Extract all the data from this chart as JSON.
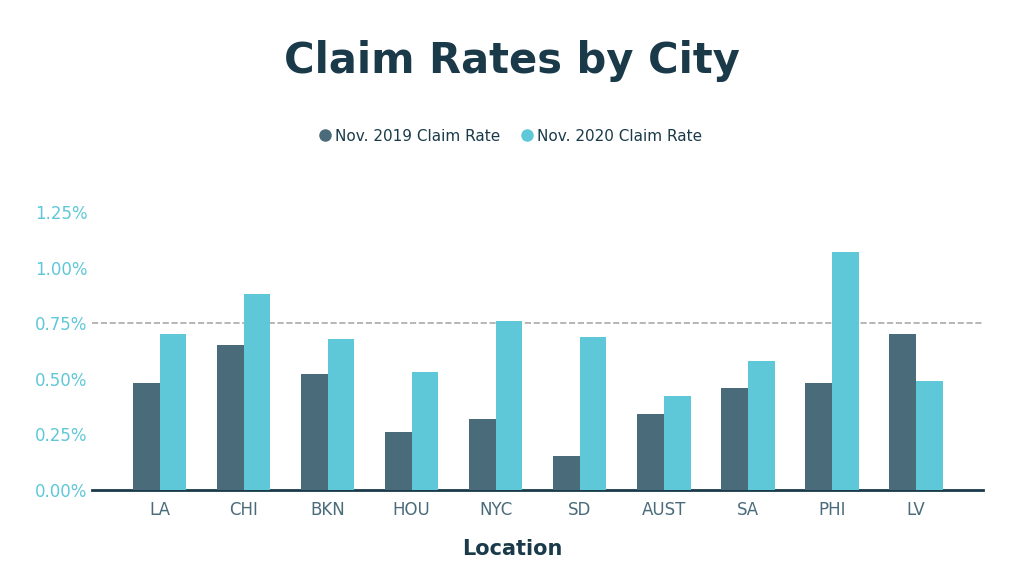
{
  "title": "Claim Rates by City",
  "xlabel": "Location",
  "categories": [
    "LA",
    "CHI",
    "BKN",
    "HOU",
    "NYC",
    "SD",
    "AUST",
    "SA",
    "PHI",
    "LV"
  ],
  "series_2019": [
    0.0048,
    0.0065,
    0.0052,
    0.0026,
    0.0032,
    0.0015,
    0.0034,
    0.0046,
    0.0048,
    0.007
  ],
  "series_2020": [
    0.007,
    0.0088,
    0.0068,
    0.0053,
    0.0076,
    0.0069,
    0.0042,
    0.0058,
    0.0107,
    0.0049
  ],
  "color_2019": "#4a6b7a",
  "color_2020": "#5ec8d8",
  "legend_2019": "Nov. 2019 Claim Rate",
  "legend_2020": "Nov. 2020 Claim Rate",
  "ylim": [
    0,
    0.0135
  ],
  "yticks": [
    0.0,
    0.0025,
    0.005,
    0.0075,
    0.01,
    0.0125
  ],
  "ytick_labels": [
    "0.00%",
    "0.25%",
    "0.50%",
    "0.75%",
    "1.00%",
    "1.25%"
  ],
  "hline_y": 0.0075,
  "background_color": "#ffffff",
  "title_color": "#1a3a4a",
  "tick_color": "#5ec8d8",
  "xtick_color": "#4a6b7a",
  "bottom_line_color": "#1a3a4a",
  "bar_width": 0.32,
  "title_fontsize": 30,
  "legend_fontsize": 11,
  "xlabel_fontsize": 15,
  "xtick_fontsize": 12,
  "ytick_fontsize": 12
}
